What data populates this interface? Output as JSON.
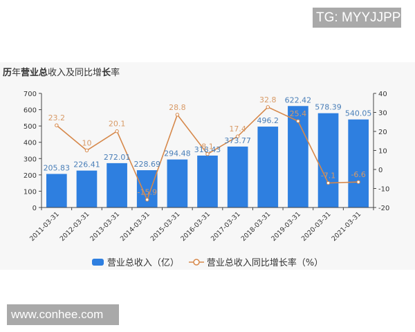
{
  "watermarks": {
    "top": "TG: MYYJJPP",
    "bottom": "www.conhee.com"
  },
  "chart_title": {
    "parts": [
      {
        "text": "历",
        "bold": true
      },
      {
        "text": "年",
        "bold": false
      },
      {
        "text": "营业总",
        "bold": true
      },
      {
        "text": "收入及同比增",
        "bold": false
      },
      {
        "text": "长",
        "bold": true
      },
      {
        "text": "率",
        "bold": false
      }
    ],
    "full": "历年营业总收入及同比增长率"
  },
  "legend": {
    "bar_label": "营业总收入（亿）",
    "line_label": "营业总收入同比增长率（%）"
  },
  "colors": {
    "bar": "#2e7fe0",
    "bar_label": "#4a7fb8",
    "line": "#d6884a",
    "line_label": "#d89a66",
    "axis": "#444444",
    "panel_bg": "#f7f7f7"
  },
  "chart_data": {
    "type": "bar+line",
    "title": "历年营业总收入及同比增长率",
    "categories": [
      "2011-03-31",
      "2012-03-31",
      "2013-03-31",
      "2014-03-31",
      "2015-03-31",
      "2016-03-31",
      "2017-03-31",
      "2018-03-31",
      "2019-03-31",
      "2020-03-31",
      "2021-03-31"
    ],
    "series": [
      {
        "name": "营业总收入（亿）",
        "type": "bar",
        "axis": "left",
        "values": [
          205.83,
          226.41,
          272.01,
          228.69,
          294.48,
          318.43,
          373.77,
          496.2,
          622.42,
          578.39,
          540.05
        ]
      },
      {
        "name": "营业总收入同比增长率（%）",
        "type": "line",
        "axis": "right",
        "values": [
          23.2,
          10,
          20.1,
          -15.9,
          28.8,
          8.1,
          17.4,
          32.8,
          25.4,
          -7.1,
          -6.6
        ]
      }
    ],
    "left_axis": {
      "ylim": [
        0,
        700
      ],
      "ticks": [
        0,
        100,
        200,
        300,
        400,
        500,
        600,
        700
      ]
    },
    "right_axis": {
      "ylim": [
        -20,
        40
      ],
      "ticks": [
        -20,
        -10,
        0,
        10,
        20,
        30,
        40
      ]
    },
    "xlabel": "",
    "ylabel": "",
    "grid": false,
    "legend_position": "bottom"
  }
}
